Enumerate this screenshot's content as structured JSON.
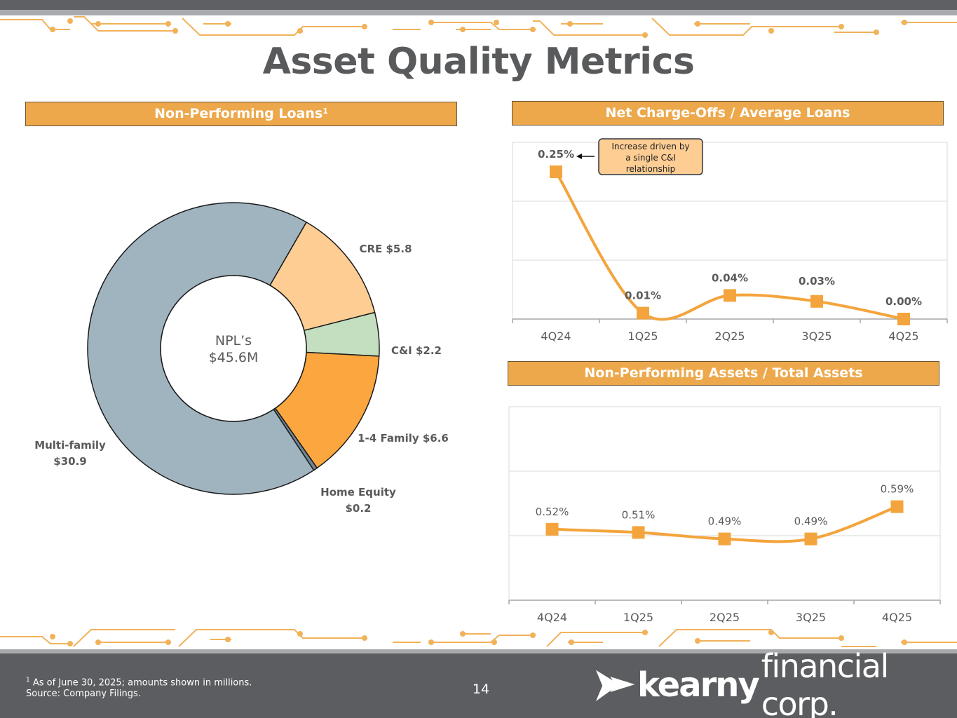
{
  "title": "Asset Quality Metrics",
  "panels": {
    "npl": {
      "header": "Non-Performing Loans",
      "header_sup": "1",
      "center_line1": "NPL’s",
      "center_line2": "$45.6M"
    },
    "nco": {
      "header": "Net Charge-Offs / Average Loans",
      "callout": [
        "Increase driven by",
        "a single C&I",
        "relationship"
      ]
    },
    "npa": {
      "header": "Non-Performing Assets / Total Assets"
    }
  },
  "chart_data": [
    {
      "id": "npl-donut",
      "type": "pie",
      "title": "Non-Performing Loans",
      "total": 45.6,
      "slices": [
        {
          "name": "CRE",
          "label_line1": "CRE $5.8",
          "label_line2": "",
          "value": 5.8,
          "color": "#fdcd93"
        },
        {
          "name": "C&I",
          "label_line1": "C&I $2.2",
          "label_line2": "",
          "value": 2.2,
          "color": "#c3dfc0"
        },
        {
          "name": "1-4 Family",
          "label_line1": "1-4 Family $6.6",
          "label_line2": "",
          "value": 6.6,
          "color": "#fba63e"
        },
        {
          "name": "Home Equity",
          "label_line1": "Home Equity",
          "label_line2": "$0.2",
          "value": 0.2,
          "color": "#6f8594"
        },
        {
          "name": "Multi-family",
          "label_line1": "Multi-family",
          "label_line2": "$30.9",
          "value": 30.9,
          "color": "#a0b4bf"
        }
      ]
    },
    {
      "id": "nco-line",
      "type": "line",
      "title": "Net Charge-Offs / Average Loans",
      "categories": [
        "4Q24",
        "1Q25",
        "2Q25",
        "3Q25",
        "4Q25"
      ],
      "values": [
        0.25,
        0.01,
        0.04,
        0.03,
        0.0
      ],
      "labels": [
        "0.25%",
        "0.01%",
        "0.04%",
        "0.03%",
        "0.00%"
      ],
      "ylim": [
        0,
        0.3
      ],
      "grid": true,
      "color": "#f4a43c"
    },
    {
      "id": "npa-line",
      "type": "line",
      "title": "Non-Performing Assets / Total Assets",
      "categories": [
        "4Q24",
        "1Q25",
        "2Q25",
        "3Q25",
        "4Q25"
      ],
      "values": [
        0.52,
        0.51,
        0.49,
        0.49,
        0.59
      ],
      "labels": [
        "0.52%",
        "0.51%",
        "0.49%",
        "0.49%",
        "0.59%"
      ],
      "ylim": [
        0.3,
        0.9
      ],
      "grid": true,
      "color": "#f4a43c"
    }
  ],
  "footer": {
    "footnote_sup": "1",
    "footnote_line1": "As of June 30, 2025; amounts shown in millions.",
    "footnote_line2": "Source: Company Filings.",
    "page_number": "14",
    "logo_word1": "kearny",
    "logo_word2": "financial corp."
  }
}
